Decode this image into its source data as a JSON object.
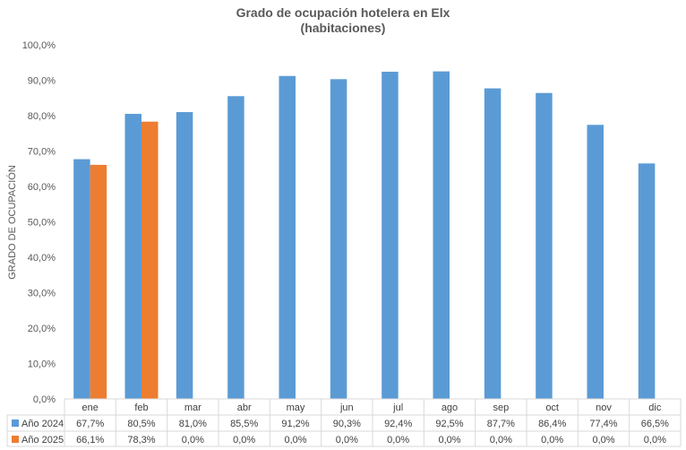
{
  "chart_data": {
    "type": "bar",
    "title": "Grado de ocupación hotelera en Elx",
    "subtitle": "(habitaciones)",
    "ylabel": "GRADO DE OCUPACIÓN",
    "xlabel": "",
    "ylim": [
      0,
      100
    ],
    "y_ticks": [
      "0,0%",
      "10,0%",
      "20,0%",
      "30,0%",
      "40,0%",
      "50,0%",
      "60,0%",
      "70,0%",
      "80,0%",
      "90,0%",
      "100,0%"
    ],
    "categories": [
      "ene",
      "feb",
      "mar",
      "abr",
      "may",
      "jun",
      "jul",
      "ago",
      "sep",
      "oct",
      "nov",
      "dic"
    ],
    "series": [
      {
        "name": "Año 2024",
        "color": "#5B9BD5",
        "values": [
          67.7,
          80.5,
          81.0,
          85.5,
          91.2,
          90.3,
          92.4,
          92.5,
          87.7,
          86.4,
          77.4,
          66.5
        ],
        "labels": [
          "67,7%",
          "80,5%",
          "81,0%",
          "85,5%",
          "91,2%",
          "90,3%",
          "92,4%",
          "92,5%",
          "87,7%",
          "86,4%",
          "77,4%",
          "66,5%"
        ]
      },
      {
        "name": "Año 2025",
        "color": "#ED7D31",
        "values": [
          66.1,
          78.3,
          0.0,
          0.0,
          0.0,
          0.0,
          0.0,
          0.0,
          0.0,
          0.0,
          0.0,
          0.0
        ],
        "labels": [
          "66,1%",
          "78,3%",
          "0,0%",
          "0,0%",
          "0,0%",
          "0,0%",
          "0,0%",
          "0,0%",
          "0,0%",
          "0,0%",
          "0,0%",
          "0,0%"
        ]
      }
    ],
    "grid": false,
    "legend": "data-table"
  }
}
